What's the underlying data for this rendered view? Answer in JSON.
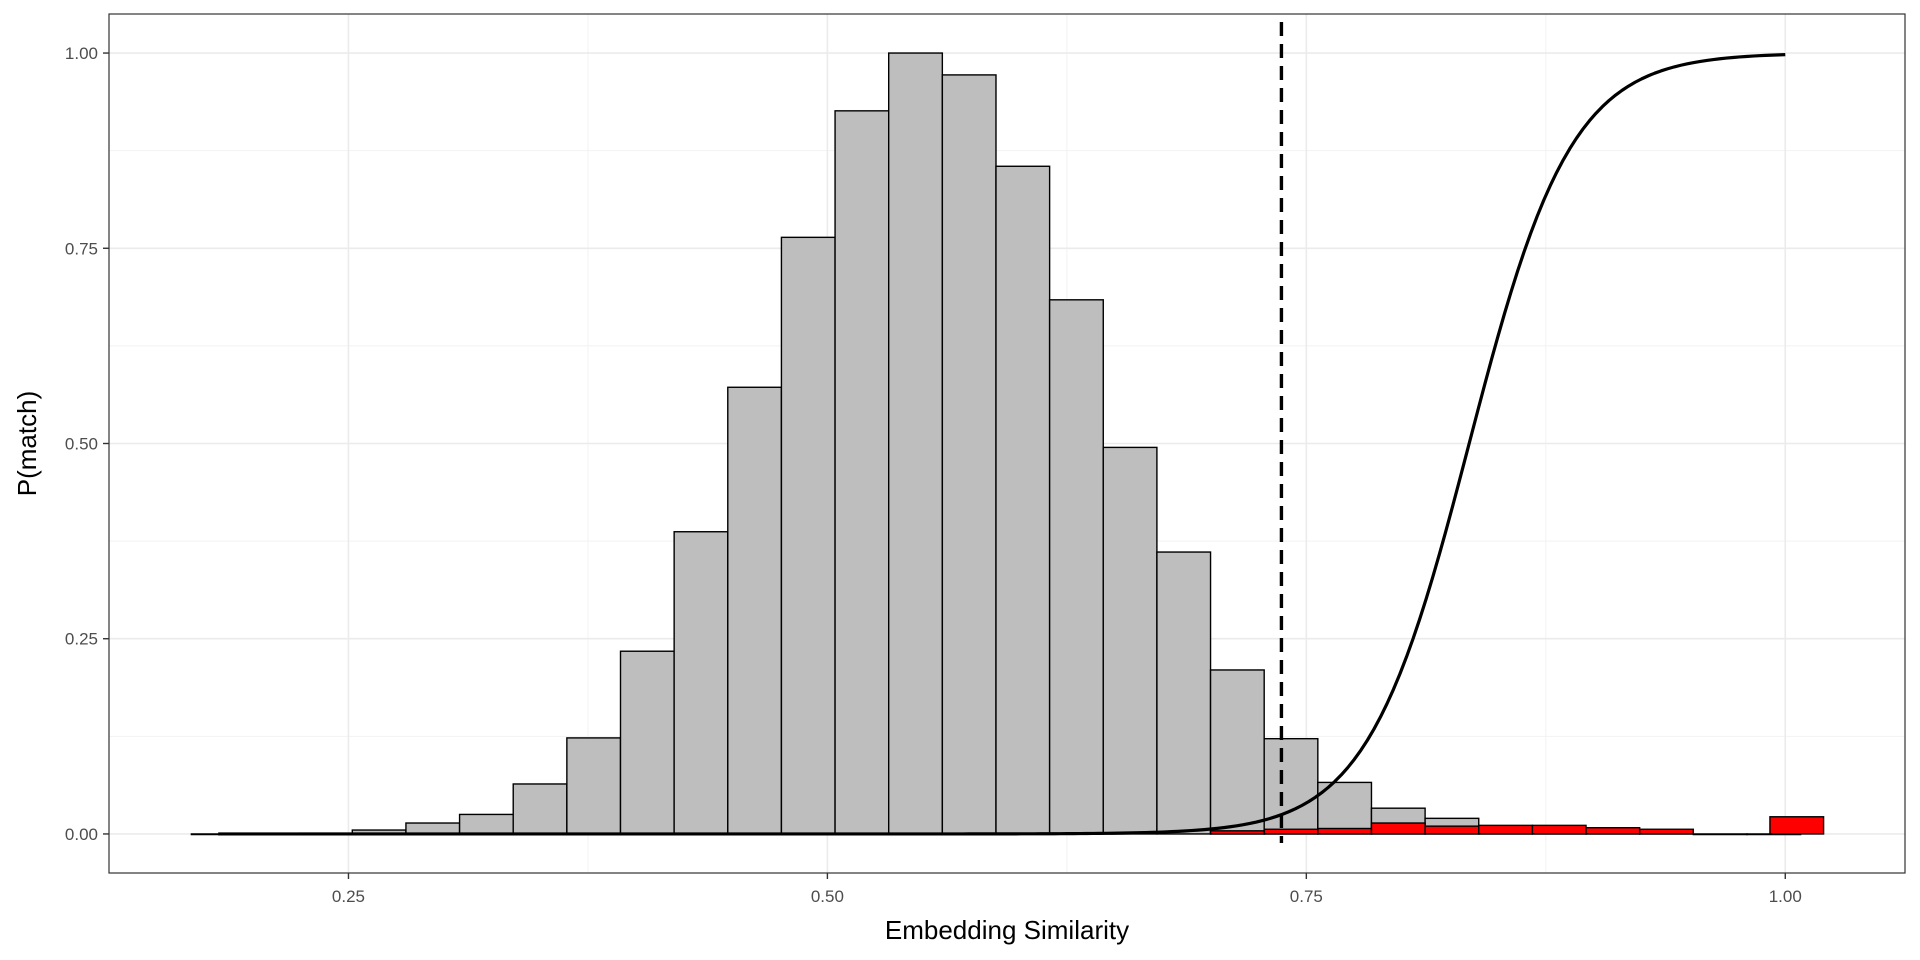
{
  "chart_data": {
    "type": "bar",
    "title": "",
    "xlabel": "Embedding Similarity",
    "ylabel": "P(match)",
    "xlim": [
      0.125,
      1.0625
    ],
    "ylim": [
      -0.05,
      1.05
    ],
    "x_ticks": [
      {
        "value": 0.25,
        "label": "0.25"
      },
      {
        "value": 0.5,
        "label": "0.50"
      },
      {
        "value": 0.75,
        "label": "0.75"
      },
      {
        "value": 1.0,
        "label": "1.00"
      }
    ],
    "y_ticks": [
      {
        "value": 0.0,
        "label": "0.00"
      },
      {
        "value": 0.25,
        "label": "0.25"
      },
      {
        "value": 0.5,
        "label": "0.50"
      },
      {
        "value": 0.75,
        "label": "0.75"
      },
      {
        "value": 1.0,
        "label": "1.00"
      }
    ],
    "grid": true,
    "legend": "none",
    "bin_width": 0.028,
    "series": [
      {
        "fill": "#bebebe",
        "bins": [
          [
            0.182,
            0.0
          ],
          [
            0.21,
            0.0
          ],
          [
            0.238,
            0.001
          ],
          [
            0.266,
            0.005
          ],
          [
            0.294,
            0.014
          ],
          [
            0.322,
            0.025
          ],
          [
            0.35,
            0.064
          ],
          [
            0.378,
            0.123
          ],
          [
            0.406,
            0.234
          ],
          [
            0.434,
            0.387
          ],
          [
            0.462,
            0.572
          ],
          [
            0.49,
            0.764
          ],
          [
            0.518,
            0.926
          ],
          [
            0.546,
            1.0
          ],
          [
            0.574,
            0.972
          ],
          [
            0.602,
            0.855
          ],
          [
            0.63,
            0.684
          ],
          [
            0.658,
            0.495
          ],
          [
            0.686,
            0.361
          ],
          [
            0.714,
            0.21
          ],
          [
            0.742,
            0.122
          ],
          [
            0.77,
            0.066
          ],
          [
            0.798,
            0.033
          ],
          [
            0.826,
            0.02
          ],
          [
            0.854,
            0.01
          ],
          [
            0.882,
            0.005
          ],
          [
            0.91,
            0.002
          ],
          [
            0.938,
            0.001
          ],
          [
            0.966,
            0.0
          ],
          [
            0.994,
            0.0
          ]
        ]
      },
      {
        "fill": "#ff0000",
        "bins": [
          [
            0.714,
            0.004
          ],
          [
            0.742,
            0.006
          ],
          [
            0.77,
            0.007
          ],
          [
            0.798,
            0.014
          ],
          [
            0.826,
            0.01
          ],
          [
            0.854,
            0.011
          ],
          [
            0.882,
            0.011
          ],
          [
            0.91,
            0.008
          ],
          [
            0.938,
            0.006
          ],
          [
            1.006,
            0.022
          ]
        ]
      }
    ],
    "curve": {
      "stroke": "#000000",
      "x_start": 0.182,
      "x_end": 1.0,
      "midpoint": 0.835,
      "slope": 37.5
    },
    "threshold": {
      "x": 0.737,
      "style": "dashed",
      "stroke": "#000000"
    }
  }
}
